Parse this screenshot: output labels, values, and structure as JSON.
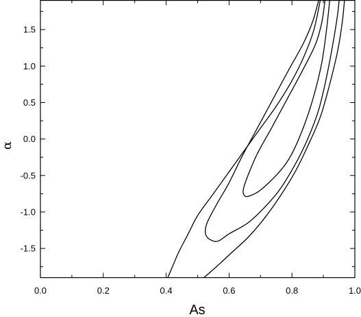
{
  "chart_data": {
    "type": "line",
    "title": "",
    "xlabel": "As",
    "ylabel": "α",
    "xlim": [
      0.0,
      1.0
    ],
    "ylim": [
      -1.9,
      1.9
    ],
    "x_ticks": [
      "0.0",
      "0.2",
      "0.4",
      "0.6",
      "0.8",
      "1.0"
    ],
    "y_ticks": [
      "-1.5",
      "-1.0",
      "-0.5",
      "0.0",
      "0.5",
      "1.0",
      "1.5"
    ],
    "x_tick_values": [
      0.0,
      0.2,
      0.4,
      0.6,
      0.8,
      1.0
    ],
    "y_tick_values": [
      -1.5,
      -1.0,
      -0.5,
      0.0,
      0.5,
      1.0,
      1.5
    ],
    "x_minor_step": 0.1,
    "y_minor_step": 0.25,
    "grid": false,
    "series": [
      {
        "points": [
          [
            0.405,
            -1.9
          ],
          [
            0.42,
            -1.75
          ],
          [
            0.44,
            -1.55
          ],
          [
            0.47,
            -1.3
          ],
          [
            0.5,
            -1.05
          ],
          [
            0.55,
            -0.75
          ],
          [
            0.6,
            -0.45
          ],
          [
            0.65,
            -0.15
          ],
          [
            0.7,
            0.15
          ],
          [
            0.75,
            0.45
          ],
          [
            0.8,
            0.8
          ],
          [
            0.84,
            1.15
          ],
          [
            0.87,
            1.5
          ],
          [
            0.89,
            1.9
          ]
        ]
      },
      {
        "points": [
          [
            0.52,
            -1.9
          ],
          [
            0.56,
            -1.75
          ],
          [
            0.61,
            -1.55
          ],
          [
            0.66,
            -1.35
          ],
          [
            0.71,
            -1.1
          ],
          [
            0.76,
            -0.8
          ],
          [
            0.81,
            -0.45
          ],
          [
            0.85,
            -0.1
          ],
          [
            0.89,
            0.3
          ],
          [
            0.92,
            0.75
          ],
          [
            0.945,
            1.2
          ],
          [
            0.96,
            1.6
          ],
          [
            0.967,
            1.9
          ]
        ]
      },
      {
        "points": [
          [
            0.885,
            1.9
          ],
          [
            0.865,
            1.6
          ],
          [
            0.835,
            1.3
          ],
          [
            0.79,
            0.95
          ],
          [
            0.74,
            0.55
          ],
          [
            0.69,
            0.15
          ],
          [
            0.64,
            -0.25
          ],
          [
            0.6,
            -0.6
          ],
          [
            0.56,
            -0.9
          ],
          [
            0.53,
            -1.15
          ],
          [
            0.525,
            -1.3
          ],
          [
            0.54,
            -1.38
          ],
          [
            0.565,
            -1.4
          ],
          [
            0.6,
            -1.3
          ],
          [
            0.66,
            -1.15
          ],
          [
            0.71,
            -0.95
          ],
          [
            0.76,
            -0.7
          ],
          [
            0.81,
            -0.35
          ],
          [
            0.85,
            0.0
          ],
          [
            0.885,
            0.4
          ],
          [
            0.91,
            0.85
          ],
          [
            0.93,
            1.3
          ],
          [
            0.945,
            1.7
          ],
          [
            0.95,
            1.9
          ]
        ]
      },
      {
        "points": [
          [
            0.905,
            1.9
          ],
          [
            0.895,
            1.6
          ],
          [
            0.875,
            1.3
          ],
          [
            0.835,
            0.95
          ],
          [
            0.785,
            0.55
          ],
          [
            0.735,
            0.15
          ],
          [
            0.69,
            -0.2
          ],
          [
            0.66,
            -0.5
          ],
          [
            0.645,
            -0.7
          ],
          [
            0.65,
            -0.78
          ],
          [
            0.665,
            -0.78
          ],
          [
            0.7,
            -0.7
          ],
          [
            0.76,
            -0.45
          ],
          [
            0.8,
            -0.2
          ],
          [
            0.84,
            0.2
          ],
          [
            0.87,
            0.6
          ],
          [
            0.895,
            1.05
          ],
          [
            0.91,
            1.5
          ],
          [
            0.92,
            1.9
          ]
        ]
      }
    ]
  }
}
